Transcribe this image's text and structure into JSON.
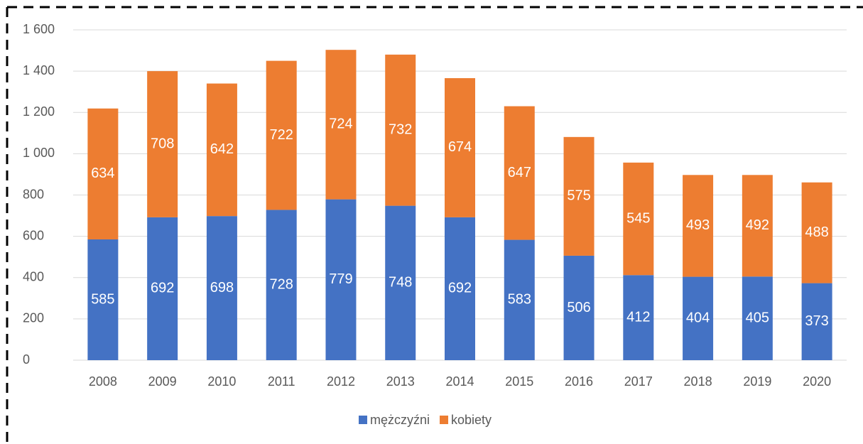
{
  "chart_data": {
    "type": "stacked_bar",
    "categories": [
      "2008",
      "2009",
      "2010",
      "2011",
      "2012",
      "2013",
      "2014",
      "2015",
      "2016",
      "2017",
      "2018",
      "2019",
      "2020"
    ],
    "series": [
      {
        "name": "mężczyźni",
        "color": "#4472c4",
        "values": [
          585,
          692,
          698,
          728,
          779,
          748,
          692,
          583,
          506,
          412,
          404,
          405,
          373
        ]
      },
      {
        "name": "kobiety",
        "color": "#ed7d31",
        "values": [
          634,
          708,
          642,
          722,
          724,
          732,
          674,
          647,
          575,
          545,
          493,
          492,
          488
        ]
      }
    ],
    "ylim": [
      0,
      1600
    ],
    "yticks": [
      0,
      200,
      400,
      600,
      800,
      {
        "value": 1000,
        "label": "1 000"
      },
      {
        "value": 1200,
        "label": "1 200"
      },
      {
        "value": 1400,
        "label": "1 400"
      },
      {
        "value": 1600,
        "label": "1 600"
      }
    ],
    "grid": true,
    "legend": "bottom"
  }
}
